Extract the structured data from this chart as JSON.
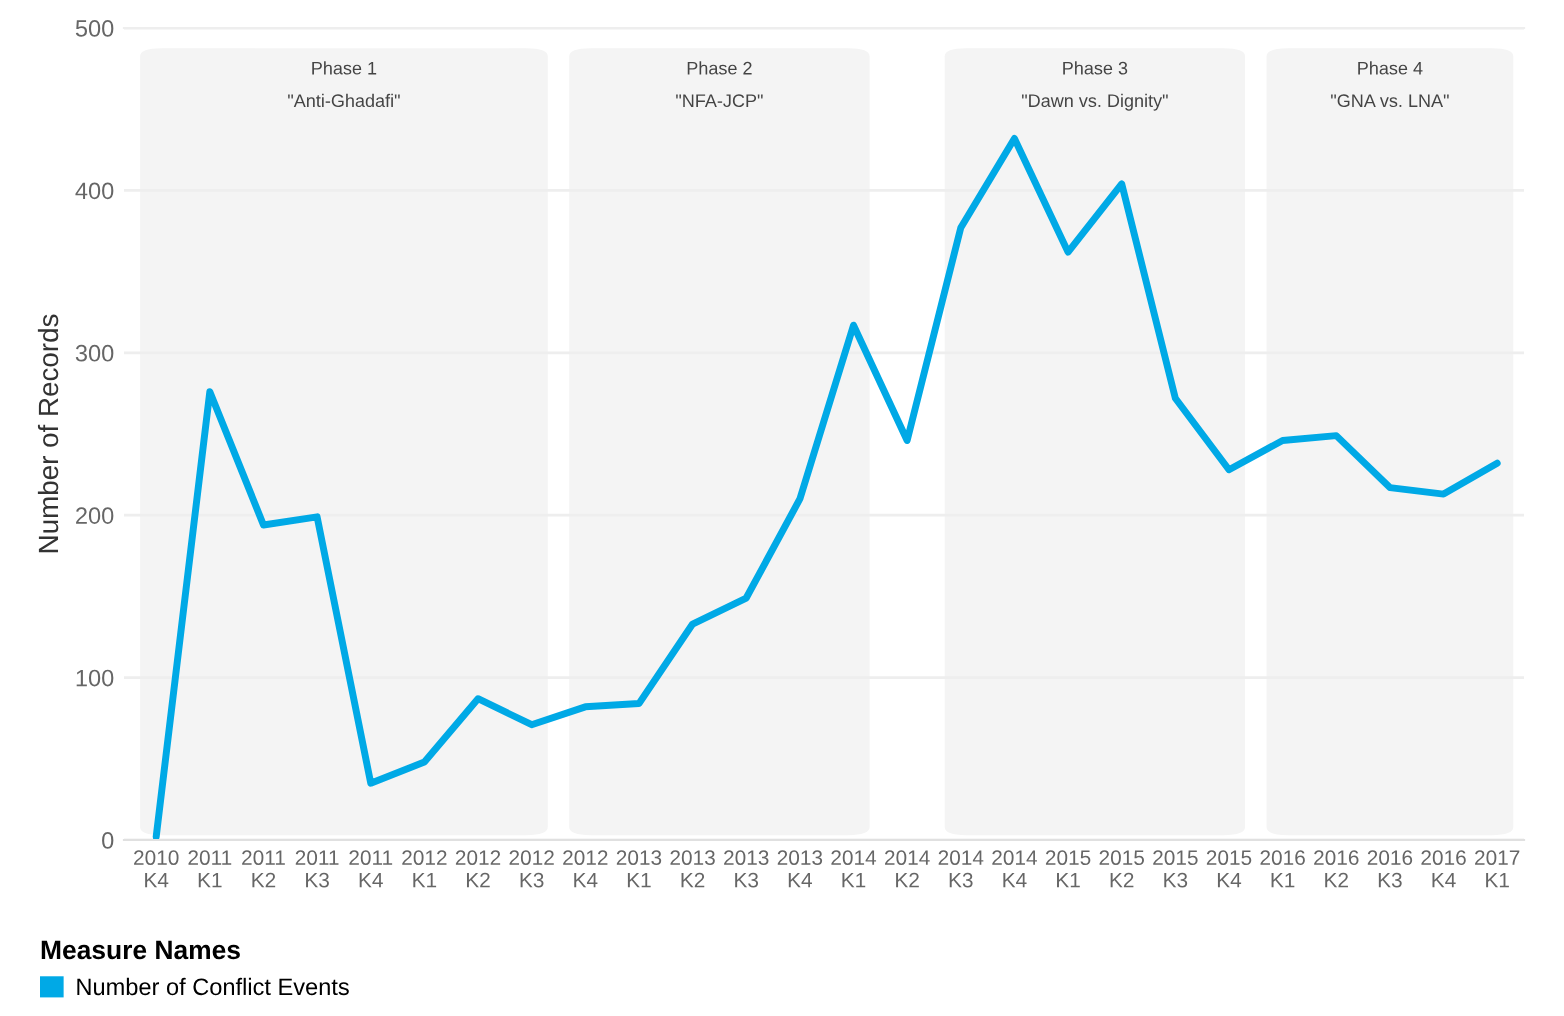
{
  "chart_data": {
    "type": "line",
    "ylabel": "Number of Records",
    "legend_title": "Measure Names",
    "legend": "bottom left",
    "categories": [
      "2010\nK4",
      "2011\nK1",
      "2011\nK2",
      "2011\nK3",
      "2011\nK4",
      "2012\nK1",
      "2012\nK2",
      "2012\nK3",
      "2012\nK4",
      "2013\nK1",
      "2013\nK2",
      "2013\nK3",
      "2013\nK4",
      "2014\nK1",
      "2014\nK2",
      "2014\nK3",
      "2014\nK4",
      "2015\nK1",
      "2015\nK2",
      "2015\nK3",
      "2015\nK4",
      "2016\nK1",
      "2016\nK2",
      "2016\nK3",
      "2016\nK4",
      "2017\nK1"
    ],
    "series": [
      {
        "name": "Number of Conflict Events",
        "color": "#00a9e6",
        "values": [
          2,
          276,
          194,
          199,
          35,
          48,
          87,
          71,
          82,
          84,
          133,
          149,
          210,
          317,
          246,
          377,
          432,
          362,
          404,
          272,
          228,
          246,
          249,
          217,
          213,
          232
        ]
      }
    ],
    "ylim": [
      0,
      500
    ],
    "yticks": [
      0,
      100,
      200,
      300,
      400,
      500
    ],
    "grid": "y",
    "marker": "none",
    "line_style": "solid",
    "bands": [
      {
        "axis": "x",
        "from": "2010\nK4",
        "to": "2012\nK3",
        "label": "Phase 1\n\"Anti-Ghadafi\"",
        "color": "#f4f4f4"
      },
      {
        "axis": "x",
        "from": "2012\nK4",
        "to": "2014\nK1",
        "label": "Phase 2\n\"NFA-JCP\"",
        "color": "#f4f4f4"
      },
      {
        "axis": "x",
        "from": "2014\nK3",
        "to": "2015\nK4",
        "label": "Phase 3\n\"Dawn vs. Dignity\"",
        "color": "#f4f4f4"
      },
      {
        "axis": "x",
        "from": "2016\nK1",
        "to": "2017\nK1",
        "label": "Phase 4\n\"GNA vs. LNA\"",
        "color": "#f4f4f4"
      }
    ]
  }
}
